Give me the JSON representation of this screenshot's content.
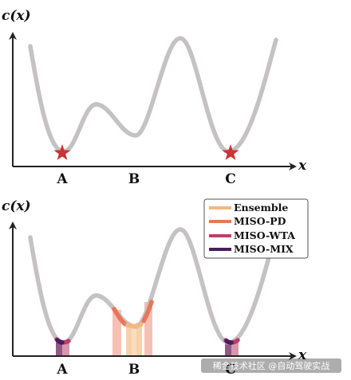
{
  "top_panel": {
    "y_axis_label": "c(x)",
    "x_axis_label": "x",
    "point_labels": [
      "A",
      "B",
      "C"
    ]
  },
  "bottom_panel": {
    "y_axis_label": "c(x)",
    "x_axis_label": "x",
    "point_labels": [
      "A",
      "B",
      "C"
    ]
  },
  "legend": {
    "items": [
      {
        "label": "Ensemble",
        "color": "#f2b880"
      },
      {
        "label": "MISO-PD",
        "color": "#e8765a"
      },
      {
        "label": "MISO-WTA",
        "color": "#b8406a"
      },
      {
        "label": "MISO-MIX",
        "color": "#4a1e5c"
      }
    ]
  },
  "colors": {
    "curve": "#c4c2c2",
    "star": "#cc3333",
    "axis": "#222222"
  },
  "watermark": {
    "text": "稀金技术社区 @自动驾驶实战"
  }
}
